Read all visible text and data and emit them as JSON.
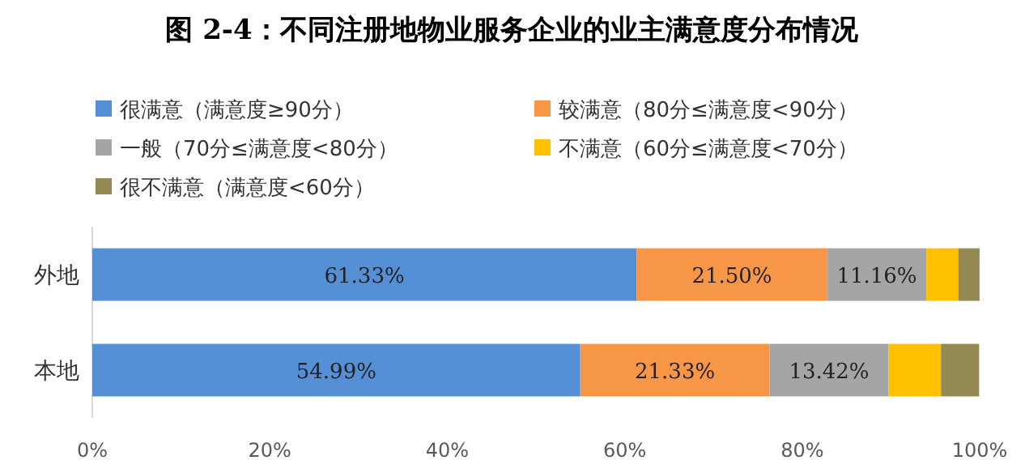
{
  "chart_data": {
    "type": "bar",
    "orientation": "horizontal",
    "stacked": true,
    "title": "图 2-4：不同注册地物业服务企业的业主满意度分布情况",
    "categories": [
      "外地",
      "本地"
    ],
    "series": [
      {
        "name": "很满意（满意度≥90分）",
        "color": "#5590d6",
        "values": [
          61.33,
          54.99
        ],
        "value_labels": [
          "61.33%",
          "54.99%"
        ]
      },
      {
        "name": "较满意（80分≤满意度<90分）",
        "color": "#f79646",
        "values": [
          21.5,
          21.33
        ],
        "value_labels": [
          "21.50%",
          "21.33%"
        ]
      },
      {
        "name": "一般（70分≤满意度<80分）",
        "color": "#a5a5a5",
        "values": [
          11.16,
          13.42
        ],
        "value_labels": [
          "11.16%",
          "13.42%"
        ]
      },
      {
        "name": "不满意（60分≤满意度<70分）",
        "color": "#ffc000",
        "values": [
          3.6,
          5.9
        ],
        "value_labels": [
          null,
          null
        ]
      },
      {
        "name": "很不满意（满意度<60分）",
        "color": "#948a54",
        "values": [
          2.4,
          4.3
        ],
        "value_labels": [
          null,
          null
        ]
      }
    ],
    "xlim": [
      0,
      100
    ],
    "xticks": [
      {
        "value": 0,
        "label": "0%"
      },
      {
        "value": 20,
        "label": "20%"
      },
      {
        "value": 40,
        "label": "40%"
      },
      {
        "value": 60,
        "label": "60%"
      },
      {
        "value": 80,
        "label": "80%"
      },
      {
        "value": 100,
        "label": "100%"
      }
    ],
    "grid": false,
    "legend": "top"
  }
}
